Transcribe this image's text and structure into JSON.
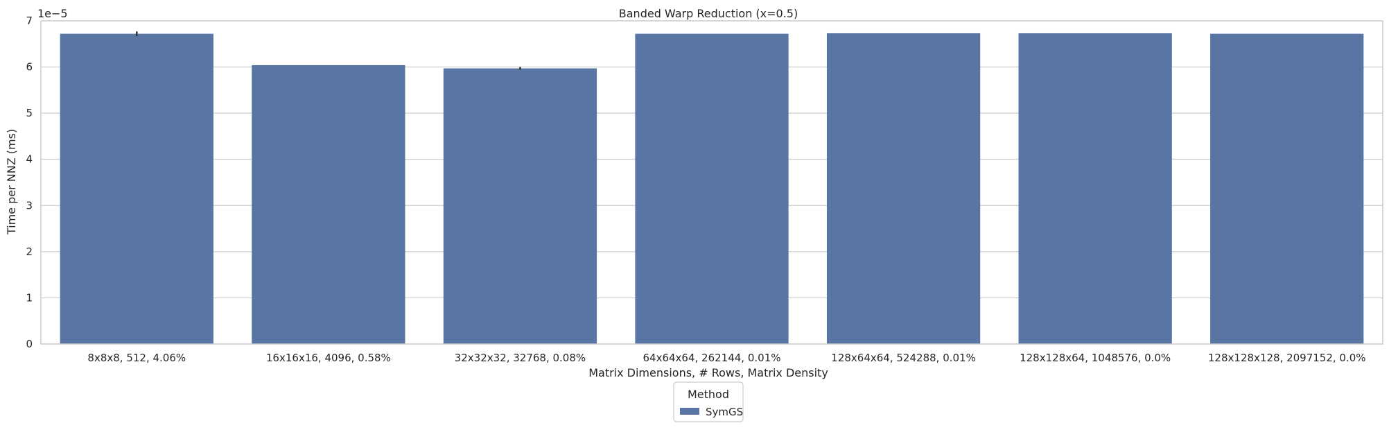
{
  "chart_data": {
    "type": "bar",
    "title": "Banded Warp Reduction (x=0.5)",
    "xlabel": "Matrix Dimensions, # Rows, Matrix Density",
    "ylabel": "Time per NNZ (ms)",
    "y_scale_label": "1e−5",
    "y_ticks": [
      0,
      1,
      2,
      3,
      4,
      5,
      6,
      7
    ],
    "ylim": [
      0,
      7
    ],
    "grid": "horizontal",
    "legend": {
      "title": "Method",
      "placement": "bottom-center",
      "entries": [
        "SymGS"
      ]
    },
    "categories": [
      "8x8x8, 512, 4.06%",
      "16x16x16, 4096, 0.58%",
      "32x32x32, 32768, 0.08%",
      "64x64x64, 262144, 0.01%",
      "128x64x64, 524288, 0.01%",
      "128x128x64, 1048576, 0.0%",
      "128x128x128, 2097152, 0.0%"
    ],
    "series": [
      {
        "name": "SymGS",
        "color": "#5875a4",
        "values": [
          6.72,
          6.04,
          5.97,
          6.72,
          6.73,
          6.73,
          6.72
        ],
        "error": [
          0.05,
          0.0,
          0.03,
          0.0,
          0.0,
          0.0,
          0.0
        ]
      }
    ]
  }
}
